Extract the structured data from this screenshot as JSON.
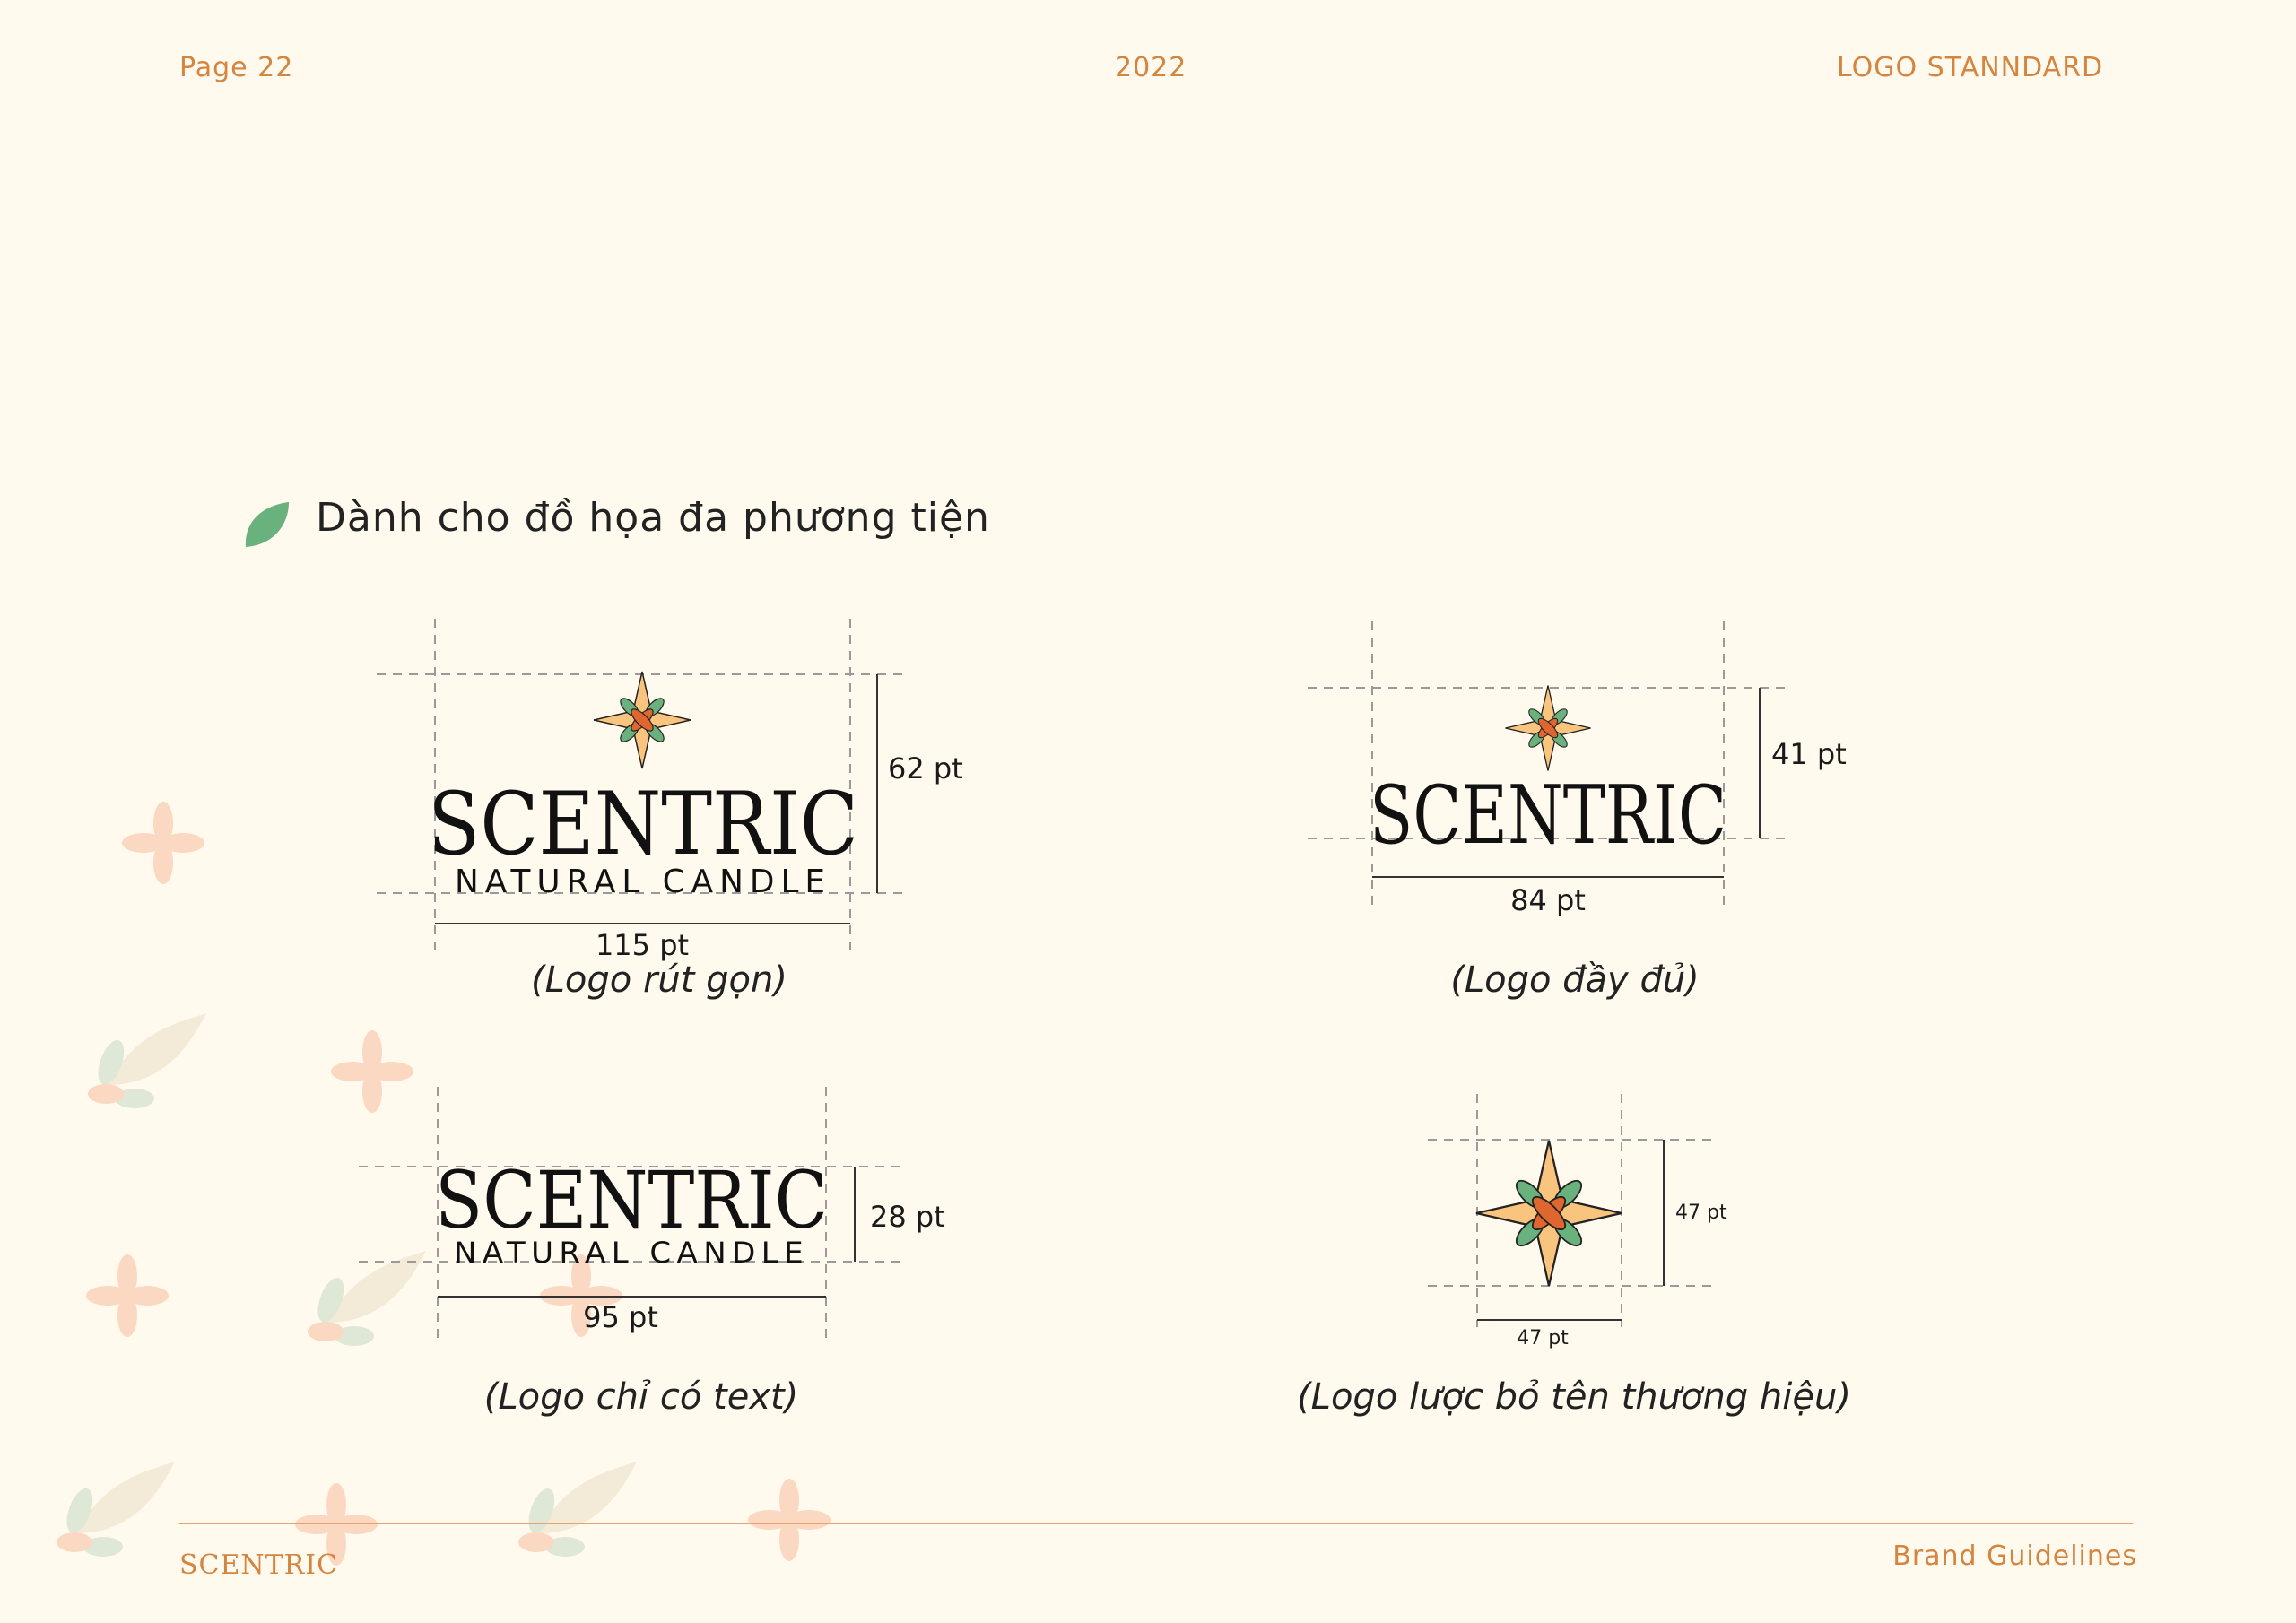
{
  "header": {
    "page": "Page 22",
    "year": "2022",
    "section": "LOGO STANNDARD"
  },
  "section_title": "Dành cho đồ họa đa phương tiện",
  "logos": [
    {
      "id": "compact",
      "wordmark": "SCENTRIC",
      "tagline": "NATURAL CANDLE",
      "height_label": "62 pt",
      "width_label": "115 pt",
      "caption": "(Logo rút gọn)"
    },
    {
      "id": "full",
      "wordmark": "SCENTRIC",
      "height_label": "41 pt",
      "width_label": "84 pt",
      "caption": "(Logo đầy đủ)"
    },
    {
      "id": "text-only",
      "wordmark": "SCENTRIC",
      "tagline": "NATURAL CANDLE",
      "height_label": "28 pt",
      "width_label": "95 pt",
      "caption": "(Logo chỉ có text)"
    },
    {
      "id": "symbol-only",
      "height_label": "47 pt",
      "width_label": "47 pt",
      "caption": "(Logo lược bỏ tên thương hiệu)"
    }
  ],
  "footer": {
    "brand": "SCENTRIC",
    "label": "Brand Guidelines"
  },
  "colors": {
    "background": "#fffaed",
    "accent": "#d4853f",
    "star": "#f9c47e",
    "petal": "#e0662f",
    "leaf": "#6ab27d"
  }
}
